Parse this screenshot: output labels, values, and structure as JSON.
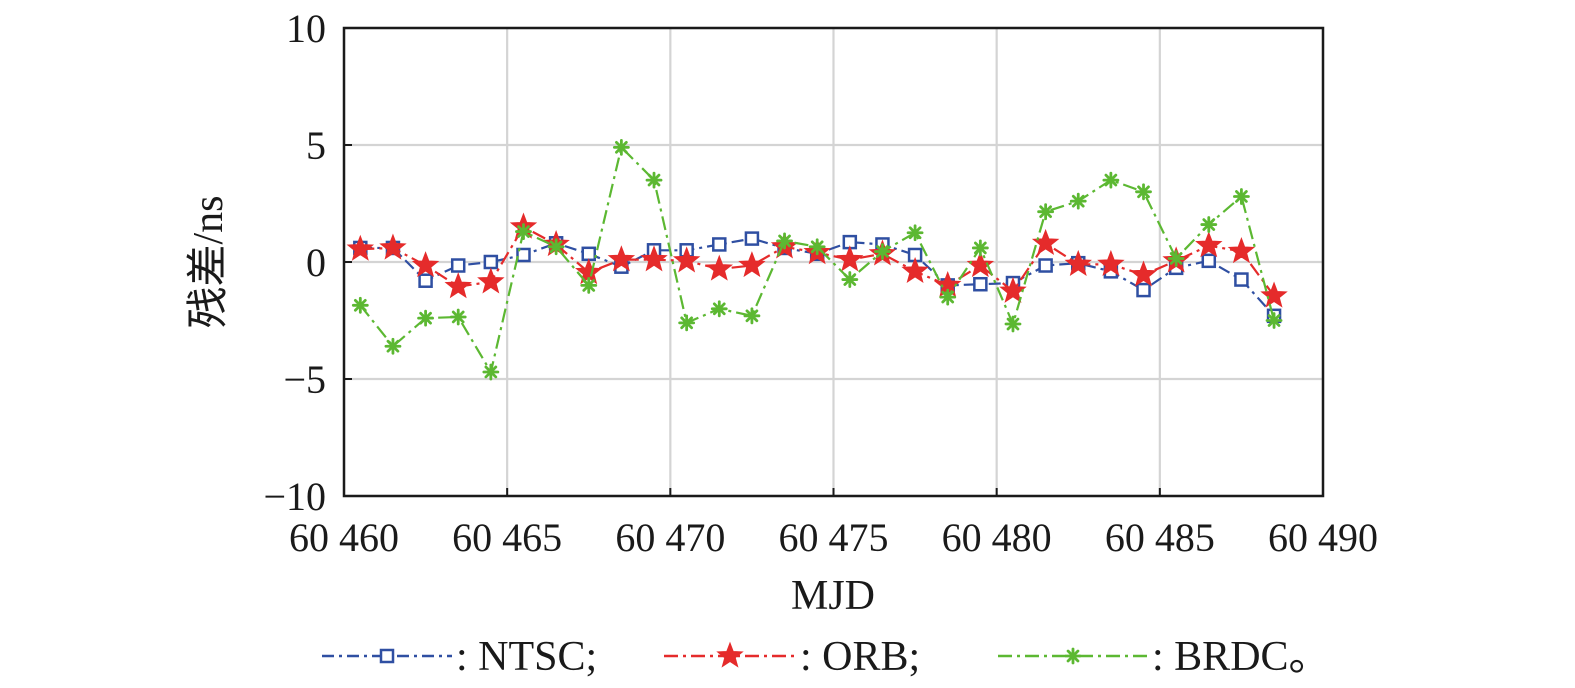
{
  "chart_data": {
    "type": "line",
    "xlabel": "MJD",
    "ylabel": "残差/ns",
    "xlim": [
      60460,
      60490
    ],
    "ylim": [
      -10,
      10
    ],
    "x_ticks": [
      60460,
      60465,
      60470,
      60475,
      60480,
      60485,
      60490
    ],
    "x_tick_labels": [
      "60 460",
      "60 465",
      "60 470",
      "60 475",
      "60 480",
      "60 485",
      "60 490"
    ],
    "y_ticks": [
      10,
      5,
      0,
      -5,
      -10
    ],
    "y_tick_labels": [
      "10",
      "5",
      "0",
      "−5",
      "−10"
    ],
    "grid": true,
    "legend_position": "bottom",
    "x": [
      60460.5,
      60461.5,
      60462.5,
      60463.5,
      60464.5,
      60465.5,
      60466.5,
      60467.5,
      60468.5,
      60469.5,
      60470.5,
      60471.5,
      60472.5,
      60473.5,
      60474.5,
      60475.5,
      60476.5,
      60477.5,
      60478.5,
      60479.5,
      60480.5,
      60481.5,
      60482.5,
      60483.5,
      60484.5,
      60485.5,
      60486.5,
      60487.5,
      60488.5
    ],
    "series": [
      {
        "name": "NTSC",
        "color": "#2f4fa2",
        "marker": "square",
        "dash": "12 5 3 5",
        "values": [
          0.6,
          0.6,
          -0.8,
          -0.15,
          0.0,
          0.3,
          0.8,
          0.35,
          -0.2,
          0.5,
          0.5,
          0.75,
          1.0,
          0.6,
          0.35,
          0.85,
          0.75,
          0.3,
          -1.0,
          -0.95,
          -0.9,
          -0.15,
          -0.05,
          -0.4,
          -1.2,
          -0.25,
          0.05,
          -0.75,
          -2.3
        ]
      },
      {
        "name": "ORB",
        "color": "#e52b2b",
        "marker": "star",
        "dash": "14 5 3 5",
        "values": [
          0.55,
          0.6,
          -0.15,
          -1.05,
          -0.85,
          1.5,
          0.75,
          -0.45,
          0.1,
          0.1,
          0.05,
          -0.3,
          -0.15,
          0.65,
          0.4,
          0.1,
          0.35,
          -0.4,
          -1.0,
          -0.15,
          -1.25,
          0.8,
          -0.1,
          -0.1,
          -0.55,
          0.05,
          0.7,
          0.45,
          -1.45
        ]
      },
      {
        "name": "BRDC",
        "color": "#5cb832",
        "marker": "asterisk",
        "dash": "14 5 3 5",
        "values": [
          -1.85,
          -3.6,
          -2.4,
          -2.35,
          -4.7,
          1.3,
          0.65,
          -1.0,
          4.9,
          3.5,
          -2.6,
          -2.0,
          -2.3,
          0.9,
          0.65,
          -0.75,
          0.45,
          1.25,
          -1.5,
          0.6,
          -2.65,
          2.15,
          2.6,
          3.5,
          3.0,
          0.15,
          1.6,
          2.8,
          -2.5
        ]
      }
    ],
    "legend": {
      "items": [
        {
          "series": 0,
          "label": ": NTSC;"
        },
        {
          "series": 1,
          "label": ": ORB;"
        },
        {
          "series": 2,
          "label": ": BRDC。"
        }
      ]
    }
  }
}
